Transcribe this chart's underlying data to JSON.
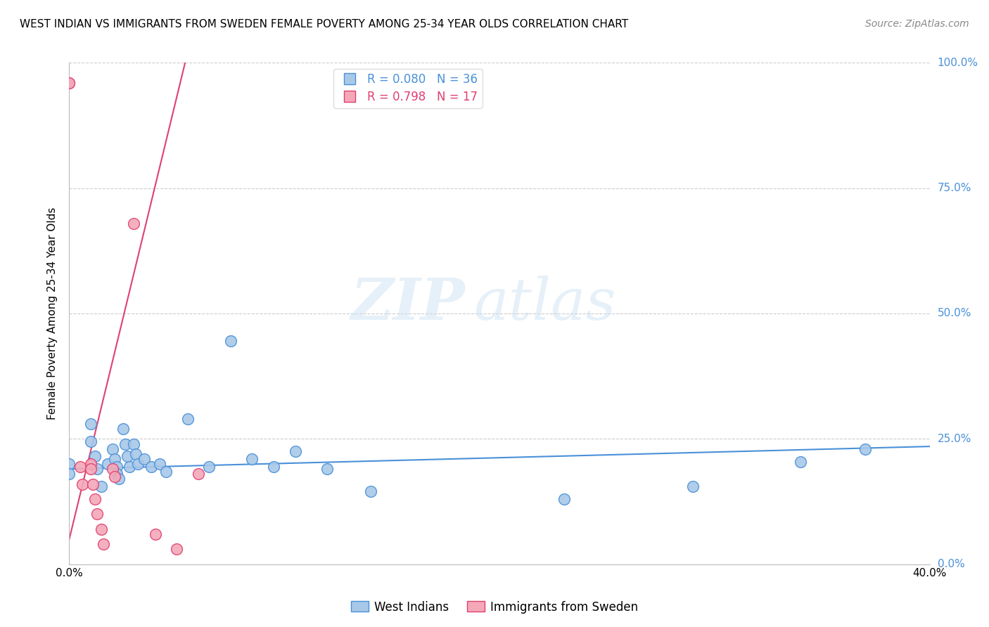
{
  "title": "WEST INDIAN VS IMMIGRANTS FROM SWEDEN FEMALE POVERTY AMONG 25-34 YEAR OLDS CORRELATION CHART",
  "source": "Source: ZipAtlas.com",
  "ylabel": "Female Poverty Among 25-34 Year Olds",
  "xlim": [
    0.0,
    0.4
  ],
  "ylim": [
    0.0,
    1.0
  ],
  "blue_R": 0.08,
  "blue_N": 36,
  "pink_R": 0.798,
  "pink_N": 17,
  "blue_color": "#a8c8e8",
  "pink_color": "#f4a8b8",
  "blue_line_color": "#4a90d9",
  "pink_line_color": "#e04070",
  "legend_label_blue": "West Indians",
  "legend_label_pink": "Immigrants from Sweden",
  "blue_scatter_x": [
    0.0,
    0.0,
    0.01,
    0.01,
    0.012,
    0.013,
    0.015,
    0.018,
    0.02,
    0.021,
    0.022,
    0.022,
    0.023,
    0.025,
    0.026,
    0.027,
    0.028,
    0.03,
    0.031,
    0.032,
    0.035,
    0.038,
    0.042,
    0.045,
    0.055,
    0.065,
    0.075,
    0.085,
    0.095,
    0.105,
    0.12,
    0.14,
    0.23,
    0.29,
    0.34,
    0.37
  ],
  "blue_scatter_y": [
    0.2,
    0.18,
    0.28,
    0.245,
    0.215,
    0.19,
    0.155,
    0.2,
    0.23,
    0.21,
    0.195,
    0.18,
    0.17,
    0.27,
    0.24,
    0.215,
    0.195,
    0.24,
    0.22,
    0.2,
    0.21,
    0.195,
    0.2,
    0.185,
    0.29,
    0.195,
    0.445,
    0.21,
    0.195,
    0.225,
    0.19,
    0.145,
    0.13,
    0.155,
    0.205,
    0.23
  ],
  "pink_scatter_x": [
    0.0,
    0.0,
    0.005,
    0.006,
    0.01,
    0.01,
    0.011,
    0.012,
    0.013,
    0.015,
    0.016,
    0.02,
    0.021,
    0.03,
    0.04,
    0.05,
    0.06
  ],
  "pink_scatter_y": [
    0.96,
    0.96,
    0.195,
    0.16,
    0.2,
    0.19,
    0.16,
    0.13,
    0.1,
    0.07,
    0.04,
    0.19,
    0.175,
    0.68,
    0.06,
    0.03,
    0.18
  ],
  "blue_trendline_x": [
    0.0,
    0.4
  ],
  "blue_trendline_y": [
    0.19,
    0.235
  ],
  "pink_trendline_x": [
    0.0,
    0.055
  ],
  "pink_trendline_y": [
    0.05,
    1.02
  ]
}
